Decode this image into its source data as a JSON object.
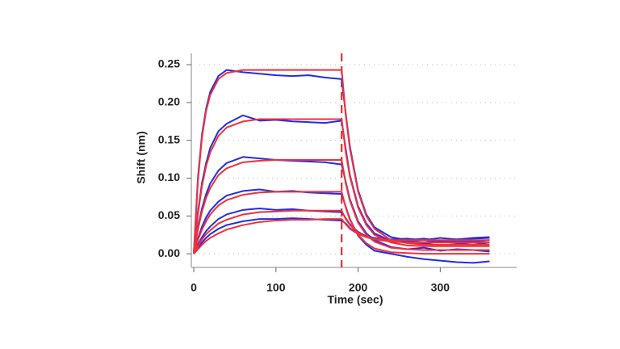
{
  "chart_data": {
    "type": "line",
    "ylabel": "Shift (nm)",
    "xlabel": "Time (sec)",
    "x": [
      0,
      5,
      10,
      15,
      20,
      30,
      40,
      60,
      80,
      100,
      120,
      140,
      160,
      180,
      185,
      190,
      200,
      210,
      220,
      240,
      260,
      280,
      300,
      320,
      340,
      360
    ],
    "series": [
      {
        "color": "#1f2de8",
        "values": [
          0,
          0.1,
          0.158,
          0.192,
          0.214,
          0.235,
          0.243,
          0.24,
          0.238,
          0.236,
          0.235,
          0.236,
          0.233,
          0.231,
          0.185,
          0.142,
          0.084,
          0.052,
          0.035,
          0.022,
          0.018,
          0.02,
          0.017,
          0.019,
          0.021,
          0.022
        ]
      },
      {
        "color": "#1f2de8",
        "values": [
          0,
          0.055,
          0.094,
          0.12,
          0.14,
          0.162,
          0.172,
          0.183,
          0.176,
          0.177,
          0.175,
          0.174,
          0.173,
          0.176,
          0.138,
          0.104,
          0.063,
          0.04,
          0.027,
          0.017,
          0.015,
          0.013,
          0.016,
          0.014,
          0.012,
          0.015
        ]
      },
      {
        "color": "#1f2de8",
        "values": [
          0,
          0.035,
          0.06,
          0.079,
          0.093,
          0.11,
          0.12,
          0.128,
          0.126,
          0.124,
          0.123,
          0.122,
          0.121,
          0.118,
          0.095,
          0.072,
          0.043,
          0.027,
          0.018,
          0.009,
          0.006,
          0.008,
          0.004,
          0.006,
          0.005,
          0.003
        ]
      },
      {
        "color": "#1f2de8",
        "values": [
          0,
          0.02,
          0.036,
          0.048,
          0.057,
          0.069,
          0.077,
          0.083,
          0.085,
          0.082,
          0.083,
          0.081,
          0.08,
          0.079,
          0.062,
          0.046,
          0.024,
          0.012,
          0.004,
          0.0,
          -0.004,
          -0.007,
          -0.009,
          -0.011,
          -0.012,
          -0.01
        ]
      },
      {
        "color": "#1f2de8",
        "values": [
          0,
          0.012,
          0.022,
          0.03,
          0.036,
          0.046,
          0.052,
          0.058,
          0.06,
          0.058,
          0.059,
          0.057,
          0.056,
          0.055,
          0.047,
          0.039,
          0.029,
          0.023,
          0.02,
          0.017,
          0.016,
          0.018,
          0.015,
          0.017,
          0.016,
          0.018
        ]
      },
      {
        "color": "#1f2de8",
        "values": [
          0,
          0.008,
          0.015,
          0.021,
          0.026,
          0.033,
          0.038,
          0.043,
          0.046,
          0.046,
          0.047,
          0.046,
          0.045,
          0.044,
          0.04,
          0.034,
          0.027,
          0.023,
          0.021,
          0.019,
          0.02,
          0.018,
          0.021,
          0.019,
          0.02,
          0.021
        ]
      },
      {
        "color": "#f0303a",
        "values": [
          0,
          0.096,
          0.154,
          0.189,
          0.21,
          0.231,
          0.239,
          0.243,
          0.243,
          0.243,
          0.243,
          0.243,
          0.243,
          0.243,
          0.183,
          0.139,
          0.082,
          0.05,
          0.033,
          0.018,
          0.014,
          0.012,
          0.012,
          0.012,
          0.012,
          0.012
        ]
      },
      {
        "color": "#f0303a",
        "values": [
          0,
          0.052,
          0.09,
          0.116,
          0.134,
          0.156,
          0.167,
          0.175,
          0.178,
          0.178,
          0.178,
          0.178,
          0.178,
          0.178,
          0.134,
          0.102,
          0.061,
          0.038,
          0.025,
          0.015,
          0.011,
          0.01,
          0.01,
          0.01,
          0.01,
          0.01
        ]
      },
      {
        "color": "#f0303a",
        "values": [
          0,
          0.032,
          0.056,
          0.074,
          0.087,
          0.104,
          0.113,
          0.121,
          0.123,
          0.124,
          0.124,
          0.124,
          0.124,
          0.124,
          0.093,
          0.07,
          0.041,
          0.025,
          0.016,
          0.008,
          0.006,
          0.005,
          0.005,
          0.005,
          0.005,
          0.005
        ]
      },
      {
        "color": "#f0303a",
        "values": [
          0,
          0.018,
          0.032,
          0.043,
          0.052,
          0.064,
          0.071,
          0.078,
          0.081,
          0.082,
          0.082,
          0.082,
          0.082,
          0.082,
          0.061,
          0.045,
          0.025,
          0.014,
          0.007,
          0.002,
          0.001,
          0,
          0,
          0,
          0,
          0
        ]
      },
      {
        "color": "#f0303a",
        "values": [
          0,
          0.01,
          0.019,
          0.026,
          0.031,
          0.04,
          0.045,
          0.052,
          0.055,
          0.056,
          0.057,
          0.057,
          0.057,
          0.057,
          0.046,
          0.038,
          0.028,
          0.022,
          0.019,
          0.016,
          0.015,
          0.015,
          0.015,
          0.015,
          0.015,
          0.015
        ]
      },
      {
        "color": "#f0303a",
        "values": [
          0,
          0.006,
          0.012,
          0.017,
          0.021,
          0.027,
          0.032,
          0.038,
          0.042,
          0.044,
          0.045,
          0.045,
          0.046,
          0.046,
          0.039,
          0.033,
          0.026,
          0.022,
          0.02,
          0.018,
          0.018,
          0.018,
          0.018,
          0.018,
          0.018,
          0.018
        ]
      }
    ],
    "vline_x": 180,
    "vline_color": "#e8201a",
    "xlim": [
      -3,
      393
    ],
    "ylim": [
      -0.018,
      0.265
    ],
    "xticks": [
      0,
      100,
      200,
      300
    ],
    "yticks": [
      {
        "value": 0,
        "label": "0.00"
      },
      {
        "value": 0.05,
        "label": "0.05"
      },
      {
        "value": 0.1,
        "label": "0.10"
      },
      {
        "value": 0.15,
        "label": "0.15"
      },
      {
        "value": 0.2,
        "label": "0.20"
      },
      {
        "value": 0.25,
        "label": "0.25"
      }
    ],
    "grid": true
  }
}
